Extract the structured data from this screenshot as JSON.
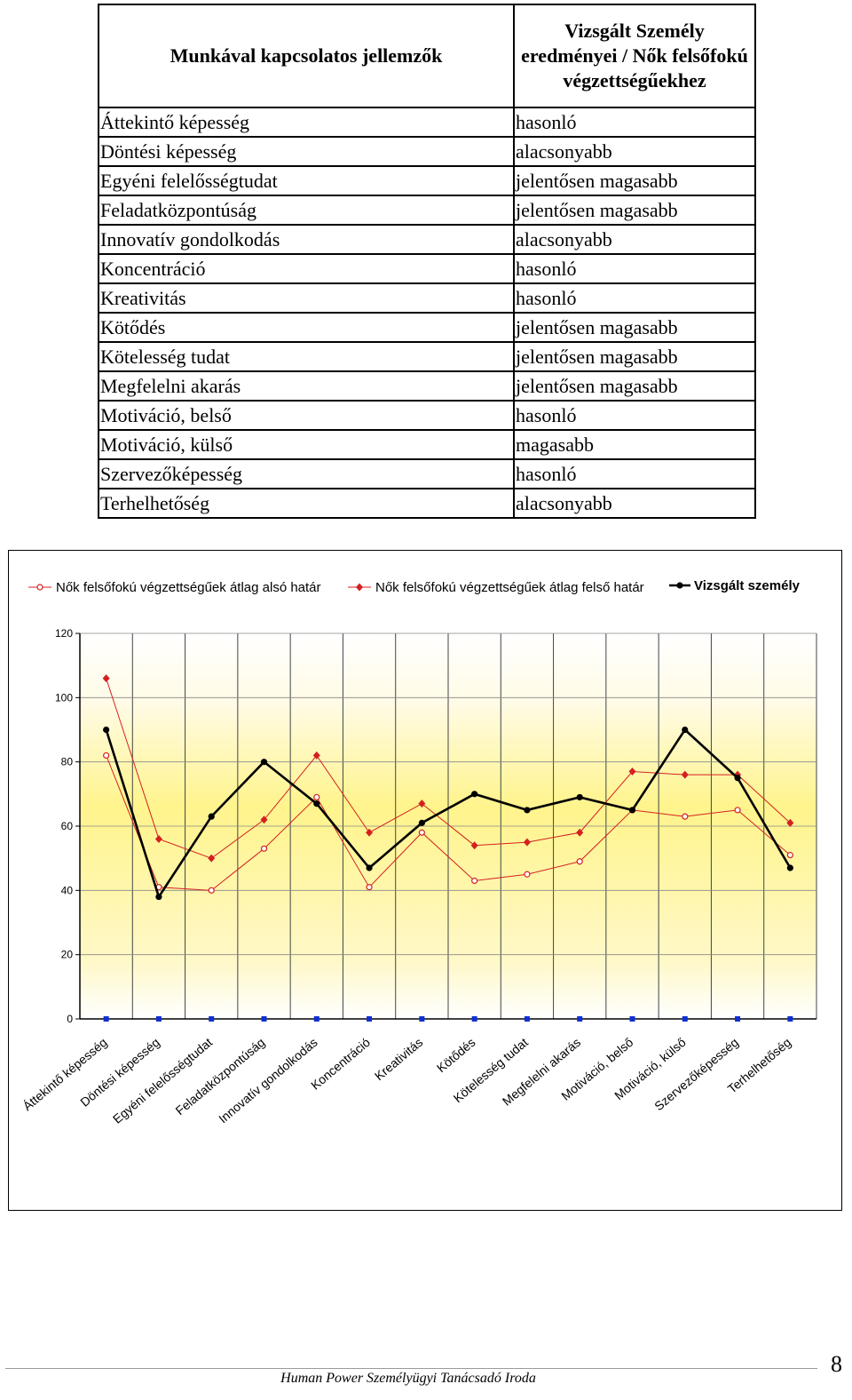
{
  "table": {
    "header_left": "Munkával kapcsolatos jellemzők",
    "header_right": "Vizsgált Személy eredményei / Nők felsőfokú végzettségűekhez",
    "rows": [
      {
        "trait": "Áttekintő képesség",
        "result": "hasonló"
      },
      {
        "trait": "Döntési képesség",
        "result": "alacsonyabb"
      },
      {
        "trait": "Egyéni felelősségtudat",
        "result": "jelentősen magasabb"
      },
      {
        "trait": "Feladatközpontúság",
        "result": "jelentősen magasabb"
      },
      {
        "trait": "Innovatív gondolkodás",
        "result": "alacsonyabb"
      },
      {
        "trait": "Koncentráció",
        "result": "hasonló"
      },
      {
        "trait": "Kreativitás",
        "result": "hasonló"
      },
      {
        "trait": "Kötődés",
        "result": "jelentősen magasabb"
      },
      {
        "trait": "Kötelesség tudat",
        "result": "jelentősen magasabb"
      },
      {
        "trait": "Megfelelni akarás",
        "result": "jelentősen magasabb"
      },
      {
        "trait": "Motiváció, belső",
        "result": "hasonló"
      },
      {
        "trait": "Motiváció, külső",
        "result": "magasabb"
      },
      {
        "trait": "Szervezőképesség",
        "result": "hasonló"
      },
      {
        "trait": "Terhelhetőség",
        "result": "alacsonyabb"
      }
    ]
  },
  "chart_data": {
    "type": "line",
    "categories": [
      "Áttekintő képesség",
      "Döntési képesség",
      "Egyéni felelősségtudat",
      "Feladatközpontúság",
      "Innovatív gondolkodás",
      "Koncentráció",
      "Kreativitás",
      "Kötődés",
      "Kötelesség tudat",
      "Megfelelni akarás",
      "Motiváció, belső",
      "Motiváció, külső",
      "Szervezőképesség",
      "Terhelhetőség"
    ],
    "ylim": [
      0,
      120
    ],
    "yticks": [
      0,
      20,
      40,
      60,
      80,
      100,
      120
    ],
    "grid": true,
    "legend_position": "top",
    "series": [
      {
        "name": "Nők felsőfokú végzettségűek átlag alsó határ",
        "color": "#d42020",
        "marker": "open-circle",
        "values": [
          82,
          41,
          40,
          53,
          69,
          41,
          58,
          43,
          45,
          49,
          65,
          63,
          65,
          51
        ]
      },
      {
        "name": "Nők felsőfokú végzettségűek átlag felső határ",
        "color": "#d42020",
        "marker": "filled-diamond",
        "values": [
          106,
          56,
          50,
          62,
          82,
          58,
          67,
          54,
          55,
          58,
          77,
          76,
          76,
          61
        ]
      },
      {
        "name": "Vizsgált személy",
        "color": "#000000",
        "marker": "filled-circle",
        "values": [
          90,
          38,
          63,
          80,
          67,
          47,
          61,
          70,
          65,
          69,
          65,
          90,
          75,
          47
        ]
      },
      {
        "name": "",
        "color": "#1030d0",
        "marker": "filled-square",
        "values": [
          0,
          0,
          0,
          0,
          0,
          0,
          0,
          0,
          0,
          0,
          0,
          0,
          0,
          0
        ]
      }
    ]
  },
  "footer": {
    "text": "Human Power Személyügyi Tanácsadó Iroda",
    "page_number": "8"
  }
}
